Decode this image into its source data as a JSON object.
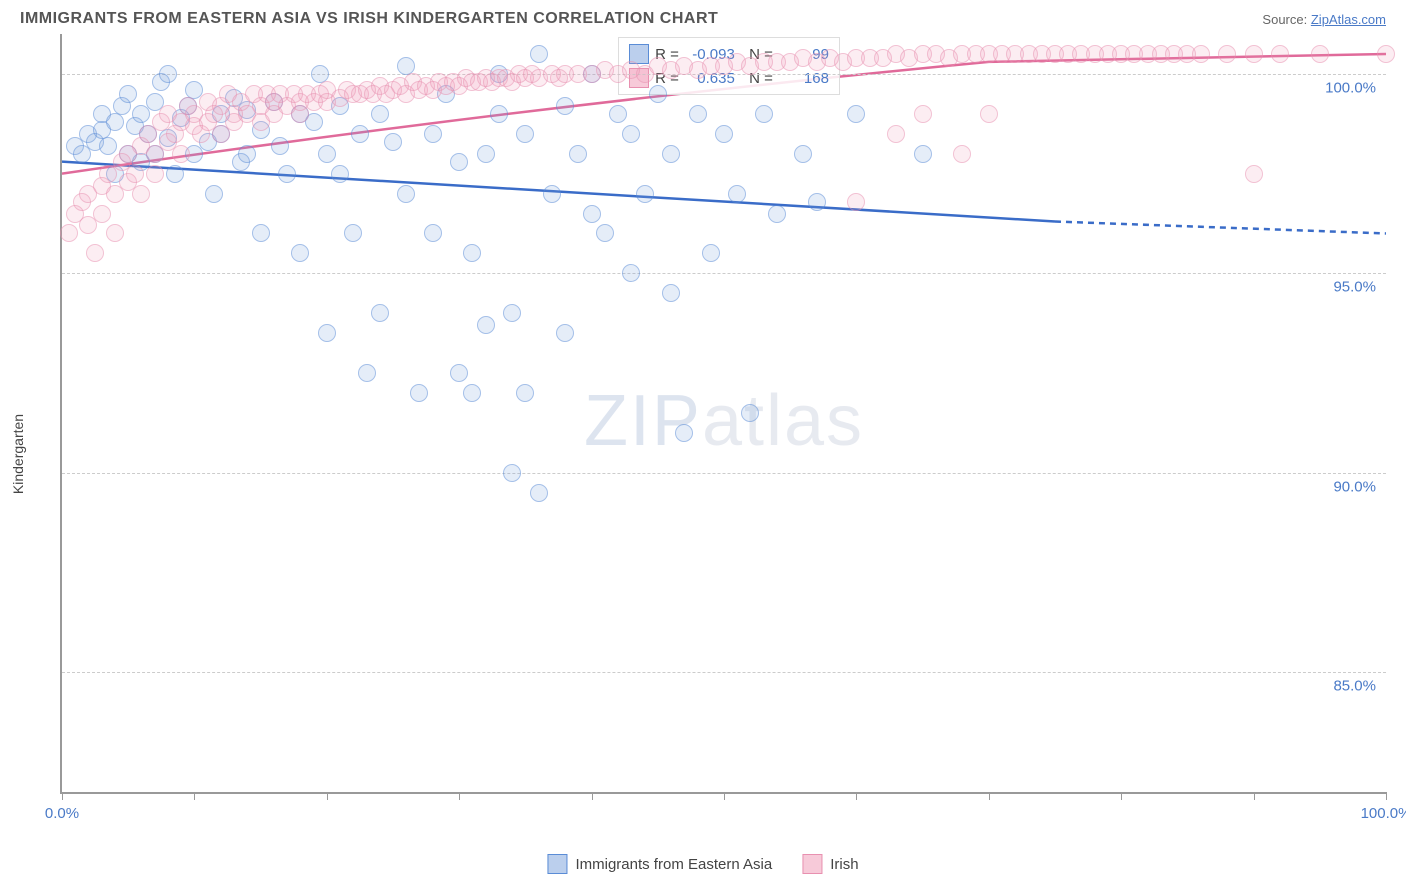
{
  "title": "IMMIGRANTS FROM EASTERN ASIA VS IRISH KINDERGARTEN CORRELATION CHART",
  "source_label": "Source:",
  "source_link": "ZipAtlas.com",
  "ylabel": "Kindergarten",
  "watermark": {
    "zip": "ZIP",
    "atlas": "atlas"
  },
  "chart": {
    "type": "scatter",
    "xlim": [
      0,
      100
    ],
    "ylim": [
      82,
      101
    ],
    "yticks": [
      85.0,
      90.0,
      95.0,
      100.0
    ],
    "ytick_labels": [
      "85.0%",
      "90.0%",
      "95.0%",
      "100.0%"
    ],
    "xticks": [
      0,
      10,
      20,
      30,
      40,
      50,
      60,
      70,
      80,
      90,
      100
    ],
    "xlim_labels": {
      "left": "0.0%",
      "right": "100.0%"
    },
    "grid_color": "#cccccc",
    "background_color": "#ffffff",
    "axis_color": "#999999",
    "marker_radius": 9,
    "series": [
      {
        "name": "Immigrants from Eastern Asia",
        "key": "blue",
        "color_fill": "rgba(120,160,220,0.35)",
        "color_stroke": "#5a8cd6",
        "R": "-0.093",
        "N": "99",
        "trend": {
          "x1": 0,
          "y1": 97.8,
          "x2": 75,
          "y2": 96.3,
          "solid_end": 75,
          "dash_end_x": 100,
          "dash_end_y": 96.0,
          "width": 2
        },
        "points": [
          [
            1,
            98.2
          ],
          [
            1.5,
            98.0
          ],
          [
            2,
            98.5
          ],
          [
            2.5,
            98.3
          ],
          [
            3,
            98.6
          ],
          [
            3,
            99.0
          ],
          [
            3.5,
            98.2
          ],
          [
            4,
            98.8
          ],
          [
            4,
            97.5
          ],
          [
            4.5,
            99.2
          ],
          [
            5,
            98.0
          ],
          [
            5,
            99.5
          ],
          [
            5.5,
            98.7
          ],
          [
            6,
            99.0
          ],
          [
            6,
            97.8
          ],
          [
            6.5,
            98.5
          ],
          [
            7,
            99.3
          ],
          [
            7,
            98.0
          ],
          [
            7.5,
            99.8
          ],
          [
            8,
            98.4
          ],
          [
            8,
            100.0
          ],
          [
            8.5,
            97.5
          ],
          [
            9,
            98.9
          ],
          [
            9.5,
            99.2
          ],
          [
            10,
            98.0
          ],
          [
            10,
            99.6
          ],
          [
            11,
            98.3
          ],
          [
            11.5,
            97.0
          ],
          [
            12,
            99.0
          ],
          [
            12,
            98.5
          ],
          [
            13,
            99.4
          ],
          [
            13.5,
            97.8
          ],
          [
            14,
            98.0
          ],
          [
            14,
            99.1
          ],
          [
            15,
            98.6
          ],
          [
            15,
            96.0
          ],
          [
            16,
            99.3
          ],
          [
            16.5,
            98.2
          ],
          [
            17,
            97.5
          ],
          [
            18,
            99.0
          ],
          [
            18,
            95.5
          ],
          [
            19,
            98.8
          ],
          [
            19.5,
            100.0
          ],
          [
            20,
            93.5
          ],
          [
            20,
            98.0
          ],
          [
            21,
            99.2
          ],
          [
            21,
            97.5
          ],
          [
            22,
            96.0
          ],
          [
            22.5,
            98.5
          ],
          [
            23,
            92.5
          ],
          [
            24,
            99.0
          ],
          [
            24,
            94.0
          ],
          [
            25,
            98.3
          ],
          [
            26,
            97.0
          ],
          [
            26,
            100.2
          ],
          [
            27,
            92.0
          ],
          [
            28,
            98.5
          ],
          [
            28,
            96.0
          ],
          [
            29,
            99.5
          ],
          [
            30,
            97.8
          ],
          [
            30,
            92.5
          ],
          [
            31,
            92.0
          ],
          [
            31,
            95.5
          ],
          [
            32,
            98.0
          ],
          [
            32,
            93.7
          ],
          [
            33,
            99.0
          ],
          [
            33,
            100.0
          ],
          [
            34,
            90.0
          ],
          [
            34,
            94.0
          ],
          [
            35,
            98.5
          ],
          [
            35,
            92.0
          ],
          [
            36,
            89.5
          ],
          [
            36,
            100.5
          ],
          [
            37,
            97.0
          ],
          [
            38,
            99.2
          ],
          [
            38,
            93.5
          ],
          [
            39,
            98.0
          ],
          [
            40,
            96.5
          ],
          [
            40,
            100.0
          ],
          [
            41,
            96.0
          ],
          [
            42,
            99.0
          ],
          [
            43,
            95.0
          ],
          [
            43,
            98.5
          ],
          [
            44,
            97.0
          ],
          [
            45,
            99.5
          ],
          [
            46,
            94.5
          ],
          [
            46,
            98.0
          ],
          [
            47,
            91.0
          ],
          [
            48,
            99.0
          ],
          [
            49,
            95.5
          ],
          [
            50,
            98.5
          ],
          [
            51,
            97.0
          ],
          [
            52,
            91.5
          ],
          [
            53,
            99.0
          ],
          [
            54,
            96.5
          ],
          [
            56,
            98.0
          ],
          [
            57,
            96.8
          ],
          [
            60,
            99.0
          ],
          [
            65,
            98.0
          ]
        ]
      },
      {
        "name": "Irish",
        "key": "pink",
        "color_fill": "rgba(240,150,180,0.3)",
        "color_stroke": "#e890b0",
        "R": "0.635",
        "N": "168",
        "trend": {
          "x1": 0,
          "y1": 97.5,
          "x2": 70,
          "y2": 100.3,
          "solid_end": 100,
          "width": 2,
          "curve_mid_x": 35,
          "curve_mid_y": 99.2
        },
        "points": [
          [
            0.5,
            96.0
          ],
          [
            1,
            96.5
          ],
          [
            1.5,
            96.8
          ],
          [
            2,
            96.2
          ],
          [
            2,
            97.0
          ],
          [
            2.5,
            95.5
          ],
          [
            3,
            97.2
          ],
          [
            3,
            96.5
          ],
          [
            3.5,
            97.5
          ],
          [
            4,
            97.0
          ],
          [
            4,
            96.0
          ],
          [
            4.5,
            97.8
          ],
          [
            5,
            97.3
          ],
          [
            5,
            98.0
          ],
          [
            5.5,
            97.5
          ],
          [
            6,
            98.2
          ],
          [
            6,
            97.0
          ],
          [
            6.5,
            98.5
          ],
          [
            7,
            98.0
          ],
          [
            7,
            97.5
          ],
          [
            7.5,
            98.8
          ],
          [
            8,
            98.3
          ],
          [
            8,
            99.0
          ],
          [
            8.5,
            98.5
          ],
          [
            9,
            98.8
          ],
          [
            9,
            98.0
          ],
          [
            9.5,
            99.2
          ],
          [
            10,
            98.7
          ],
          [
            10,
            99.0
          ],
          [
            10.5,
            98.5
          ],
          [
            11,
            99.3
          ],
          [
            11,
            98.8
          ],
          [
            11.5,
            99.0
          ],
          [
            12,
            99.2
          ],
          [
            12,
            98.5
          ],
          [
            12.5,
            99.5
          ],
          [
            13,
            99.0
          ],
          [
            13,
            98.8
          ],
          [
            13.5,
            99.3
          ],
          [
            14,
            99.0
          ],
          [
            14.5,
            99.5
          ],
          [
            15,
            99.2
          ],
          [
            15,
            98.8
          ],
          [
            15.5,
            99.5
          ],
          [
            16,
            99.3
          ],
          [
            16,
            99.0
          ],
          [
            16.5,
            99.5
          ],
          [
            17,
            99.2
          ],
          [
            17.5,
            99.5
          ],
          [
            18,
            99.3
          ],
          [
            18,
            99.0
          ],
          [
            18.5,
            99.5
          ],
          [
            19,
            99.3
          ],
          [
            19.5,
            99.5
          ],
          [
            20,
            99.3
          ],
          [
            20,
            99.6
          ],
          [
            21,
            99.4
          ],
          [
            21.5,
            99.6
          ],
          [
            22,
            99.5
          ],
          [
            22.5,
            99.5
          ],
          [
            23,
            99.6
          ],
          [
            23.5,
            99.5
          ],
          [
            24,
            99.7
          ],
          [
            24.5,
            99.5
          ],
          [
            25,
            99.6
          ],
          [
            25.5,
            99.7
          ],
          [
            26,
            99.5
          ],
          [
            26.5,
            99.8
          ],
          [
            27,
            99.6
          ],
          [
            27.5,
            99.7
          ],
          [
            28,
            99.6
          ],
          [
            28.5,
            99.8
          ],
          [
            29,
            99.7
          ],
          [
            29.5,
            99.8
          ],
          [
            30,
            99.7
          ],
          [
            30.5,
            99.9
          ],
          [
            31,
            99.8
          ],
          [
            31.5,
            99.8
          ],
          [
            32,
            99.9
          ],
          [
            32.5,
            99.8
          ],
          [
            33,
            99.9
          ],
          [
            33.5,
            99.9
          ],
          [
            34,
            99.8
          ],
          [
            34.5,
            100.0
          ],
          [
            35,
            99.9
          ],
          [
            35.5,
            100.0
          ],
          [
            36,
            99.9
          ],
          [
            37,
            100.0
          ],
          [
            37.5,
            99.9
          ],
          [
            38,
            100.0
          ],
          [
            39,
            100.0
          ],
          [
            40,
            100.0
          ],
          [
            41,
            100.1
          ],
          [
            42,
            100.0
          ],
          [
            43,
            100.1
          ],
          [
            44,
            100.0
          ],
          [
            45,
            100.2
          ],
          [
            46,
            100.1
          ],
          [
            47,
            100.2
          ],
          [
            48,
            100.1
          ],
          [
            49,
            100.2
          ],
          [
            50,
            100.2
          ],
          [
            51,
            100.3
          ],
          [
            52,
            100.2
          ],
          [
            53,
            100.3
          ],
          [
            54,
            100.3
          ],
          [
            55,
            100.3
          ],
          [
            56,
            100.4
          ],
          [
            57,
            100.3
          ],
          [
            58,
            100.4
          ],
          [
            59,
            100.3
          ],
          [
            60,
            100.4
          ],
          [
            60,
            96.8
          ],
          [
            61,
            100.4
          ],
          [
            62,
            100.4
          ],
          [
            63,
            100.5
          ],
          [
            63,
            98.5
          ],
          [
            64,
            100.4
          ],
          [
            65,
            100.5
          ],
          [
            65,
            99.0
          ],
          [
            66,
            100.5
          ],
          [
            67,
            100.4
          ],
          [
            68,
            100.5
          ],
          [
            68,
            98.0
          ],
          [
            69,
            100.5
          ],
          [
            70,
            100.5
          ],
          [
            70,
            99.0
          ],
          [
            71,
            100.5
          ],
          [
            72,
            100.5
          ],
          [
            73,
            100.5
          ],
          [
            74,
            100.5
          ],
          [
            75,
            100.5
          ],
          [
            76,
            100.5
          ],
          [
            77,
            100.5
          ],
          [
            78,
            100.5
          ],
          [
            79,
            100.5
          ],
          [
            80,
            100.5
          ],
          [
            81,
            100.5
          ],
          [
            82,
            100.5
          ],
          [
            83,
            100.5
          ],
          [
            84,
            100.5
          ],
          [
            85,
            100.5
          ],
          [
            86,
            100.5
          ],
          [
            88,
            100.5
          ],
          [
            90,
            100.5
          ],
          [
            90,
            97.5
          ],
          [
            92,
            100.5
          ],
          [
            95,
            100.5
          ],
          [
            100,
            100.5
          ]
        ]
      }
    ]
  },
  "bottom_legend": [
    {
      "swatch": "blue",
      "label": "Immigrants from Eastern Asia"
    },
    {
      "swatch": "pink",
      "label": "Irish"
    }
  ]
}
